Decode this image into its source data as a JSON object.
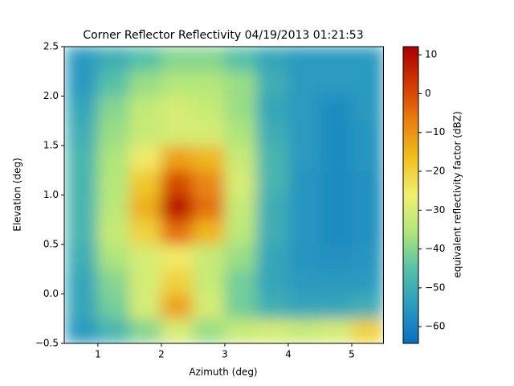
{
  "chart_data": {
    "type": "heatmap",
    "title": "Corner Reflector Reflectivity 04/19/2013 01:21:53",
    "x_label": "Azimuth (deg)",
    "y_label": "Elevation (deg)",
    "colorbar_label": "equivalent reflectivity factor (dBZ)",
    "x": [
      0.5,
      1.0,
      1.5,
      2.0,
      2.5,
      3.0,
      3.5,
      4.0,
      4.5,
      5.0,
      5.5
    ],
    "y": [
      -0.5,
      -0.25,
      0.0,
      0.25,
      0.5,
      0.75,
      1.0,
      1.25,
      1.5,
      1.75,
      2.0,
      2.25,
      2.5
    ],
    "z": [
      [
        -55,
        -48,
        -40,
        -30,
        -38,
        -32,
        -30,
        -32,
        -30,
        -20
      ],
      [
        -52,
        -42,
        -30,
        -12,
        -30,
        -42,
        -50,
        -52,
        -52,
        -50
      ],
      [
        -52,
        -40,
        -30,
        -20,
        -32,
        -42,
        -52,
        -55,
        -55,
        -55
      ],
      [
        -50,
        -36,
        -30,
        -25,
        -32,
        -38,
        -52,
        -56,
        -57,
        -56
      ],
      [
        -48,
        -32,
        -20,
        -5,
        -15,
        -34,
        -50,
        -56,
        -58,
        -57
      ],
      [
        -48,
        -34,
        -14,
        8,
        -5,
        -32,
        -50,
        -56,
        -58,
        -57
      ],
      [
        -48,
        -35,
        -18,
        0,
        -8,
        -30,
        -48,
        -56,
        -58,
        -57
      ],
      [
        -48,
        -36,
        -25,
        -12,
        -15,
        -32,
        -48,
        -55,
        -58,
        -56
      ],
      [
        -50,
        -38,
        -32,
        -30,
        -30,
        -36,
        -50,
        -55,
        -58,
        -56
      ],
      [
        -52,
        -40,
        -33,
        -30,
        -32,
        -38,
        -52,
        -55,
        -58,
        -55
      ],
      [
        -55,
        -45,
        -38,
        -35,
        -35,
        -38,
        -50,
        -55,
        -55,
        -55
      ],
      [
        -55,
        -50,
        -45,
        -40,
        -40,
        -45,
        -52,
        -55,
        -55,
        -55
      ]
    ],
    "xlim": [
      0.47,
      5.5
    ],
    "ylim": [
      -0.5,
      2.5
    ],
    "xticks": [
      1,
      2,
      3,
      4,
      5
    ],
    "yticks": [
      {
        "value": -0.5,
        "label": "−0.5"
      },
      {
        "value": 0.0,
        "label": "0.0"
      },
      {
        "value": 0.5,
        "label": "0.5"
      },
      {
        "value": 1.0,
        "label": "1.0"
      },
      {
        "value": 1.5,
        "label": "1.5"
      },
      {
        "value": 2.0,
        "label": "2.0"
      },
      {
        "value": 2.5,
        "label": "2.5"
      }
    ],
    "clim": [
      -64.3,
      12.1
    ],
    "cticks": [
      {
        "value": -60,
        "label": "−60"
      },
      {
        "value": -50,
        "label": "−50"
      },
      {
        "value": -40,
        "label": "−40"
      },
      {
        "value": -30,
        "label": "−30"
      },
      {
        "value": -20,
        "label": "−20"
      },
      {
        "value": -10,
        "label": "−10"
      },
      0,
      10
    ],
    "colormap": [
      "#0a6ec0",
      "#2a9bc0",
      "#55c0a8",
      "#b0e67a",
      "#f0f070",
      "#f0c020",
      "#e88010",
      "#d03800",
      "#a80000"
    ]
  }
}
